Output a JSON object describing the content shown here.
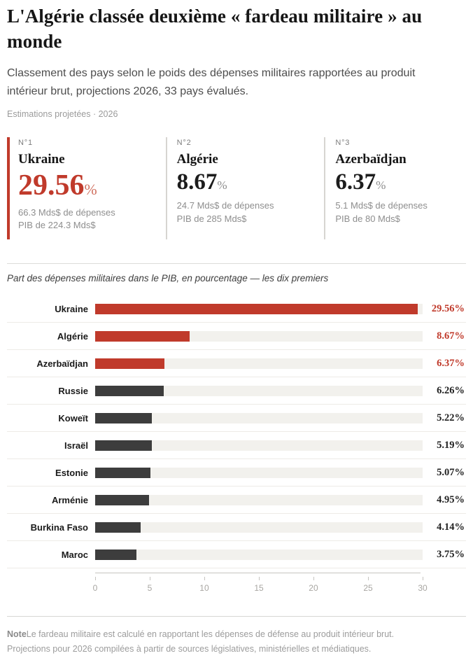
{
  "header": {
    "title": "L'Algérie classée deuxième « fardeau militaire » au monde",
    "subtitle": "Classement des pays selon le poids des dépenses militaires rapportées au produit intérieur brut, projections 2026, 33 pays évalués.",
    "meta": "Estimations projetées · 2026"
  },
  "cards": [
    {
      "rank": "N°1",
      "country": "Ukraine",
      "value": "29.56",
      "unit": "%",
      "spending": "66.3 Mds$ de dépenses",
      "gdp": "PIB de 224.3 Mds$"
    },
    {
      "rank": "N°2",
      "country": "Algérie",
      "value": "8.67",
      "unit": "%",
      "spending": "24.7 Mds$ de dépenses",
      "gdp": "PIB de 285 Mds$"
    },
    {
      "rank": "N°3",
      "country": "Azerbaïdjan",
      "value": "6.37",
      "unit": "%",
      "spending": "5.1 Mds$ de dépenses",
      "gdp": "PIB de 80 Mds$"
    }
  ],
  "chart": {
    "subtitle": "Part des dépenses militaires dans le PIB, en pourcentage — les dix premiers"
  },
  "chart_data": {
    "type": "bar",
    "orientation": "horizontal",
    "categories": [
      "Ukraine",
      "Algérie",
      "Azerbaïdjan",
      "Russie",
      "Koweït",
      "Israël",
      "Estonie",
      "Arménie",
      "Burkina Faso",
      "Maroc"
    ],
    "values": [
      29.56,
      8.67,
      6.37,
      6.26,
      5.22,
      5.19,
      5.07,
      4.95,
      4.14,
      3.75
    ],
    "value_labels": [
      "29.56%",
      "8.67%",
      "6.37%",
      "6.26%",
      "5.22%",
      "5.19%",
      "5.07%",
      "4.95%",
      "4.14%",
      "3.75%"
    ],
    "highlight_top": 3,
    "xlim": [
      0,
      30
    ],
    "x_ticks": [
      0,
      5,
      10,
      15,
      20,
      25,
      30
    ],
    "grid": false,
    "legend": "none",
    "colors": {
      "highlight_bar": "#c03a2b",
      "default_bar": "#3d3d3d",
      "track": "#f2f1ed",
      "highlight_value_text": "#c03a2b",
      "default_value_text": "#222222"
    }
  },
  "footer": {
    "note_label": "Note",
    "note_line1": "Le fardeau militaire est calculé en rapportant les dépenses de défense au produit intérieur brut.",
    "note_line2": "Projections pour 2026 compilées à partir de sources législatives, ministérielles et médiatiques."
  }
}
